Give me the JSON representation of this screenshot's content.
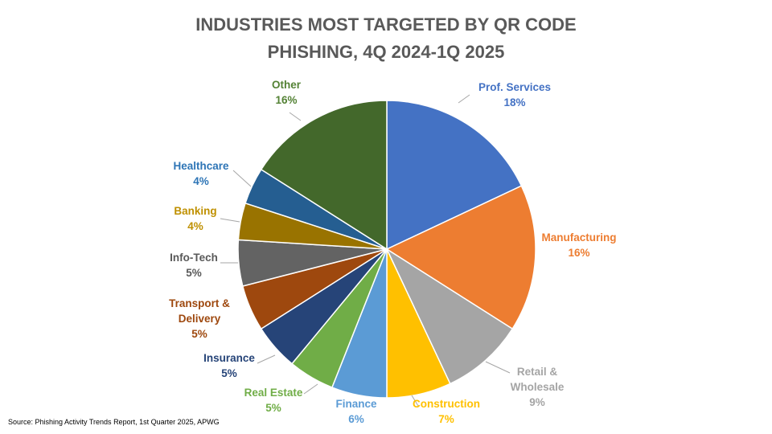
{
  "chart_data": {
    "type": "pie",
    "title": [
      "INDUSTRIES MOST TARGETED BY QR CODE",
      "PHISHING, 4Q 2024-1Q 2025"
    ],
    "slices": [
      {
        "label": [
          "Prof. Services"
        ],
        "value": 18,
        "value_label": "18%",
        "color": "#4472C4"
      },
      {
        "label": [
          "Manufacturing"
        ],
        "value": 16,
        "value_label": "16%",
        "color": "#ED7D31"
      },
      {
        "label": [
          "Retail &",
          "Wholesale"
        ],
        "value": 9,
        "value_label": "9%",
        "color": "#A5A5A5"
      },
      {
        "label": [
          "Construction"
        ],
        "value": 7,
        "value_label": "7%",
        "color": "#FFC000"
      },
      {
        "label": [
          "Finance"
        ],
        "value": 6,
        "value_label": "6%",
        "color": "#5B9BD5"
      },
      {
        "label": [
          "Real Estate"
        ],
        "value": 5,
        "value_label": "5%",
        "color": "#70AD47"
      },
      {
        "label": [
          "Insurance"
        ],
        "value": 5,
        "value_label": "5%",
        "color": "#264478"
      },
      {
        "label": [
          "Transport &",
          "Delivery"
        ],
        "value": 5,
        "value_label": "5%",
        "color": "#9E480E"
      },
      {
        "label": [
          "Info-Tech"
        ],
        "value": 5,
        "value_label": "5%",
        "color": "#636363"
      },
      {
        "label": [
          "Banking"
        ],
        "value": 4,
        "value_label": "4%",
        "color": "#997300"
      },
      {
        "label": [
          "Healthcare"
        ],
        "value": 4,
        "value_label": "4%",
        "color": "#255E91"
      },
      {
        "label": [
          "Other"
        ],
        "value": 16,
        "value_label": "16%",
        "color": "#43682B"
      }
    ],
    "label_colors": [
      "#4472C4",
      "#ED7D31",
      "#A5A5A5",
      "#FFC000",
      "#5B9BD5",
      "#70AD47",
      "#264478",
      "#9E480E",
      "#595959",
      "#BF9000",
      "#2E75B6",
      "#548235"
    ]
  },
  "source": "Source: Phishing Activity Trends Report, 1st Quarter 2025, APWG"
}
